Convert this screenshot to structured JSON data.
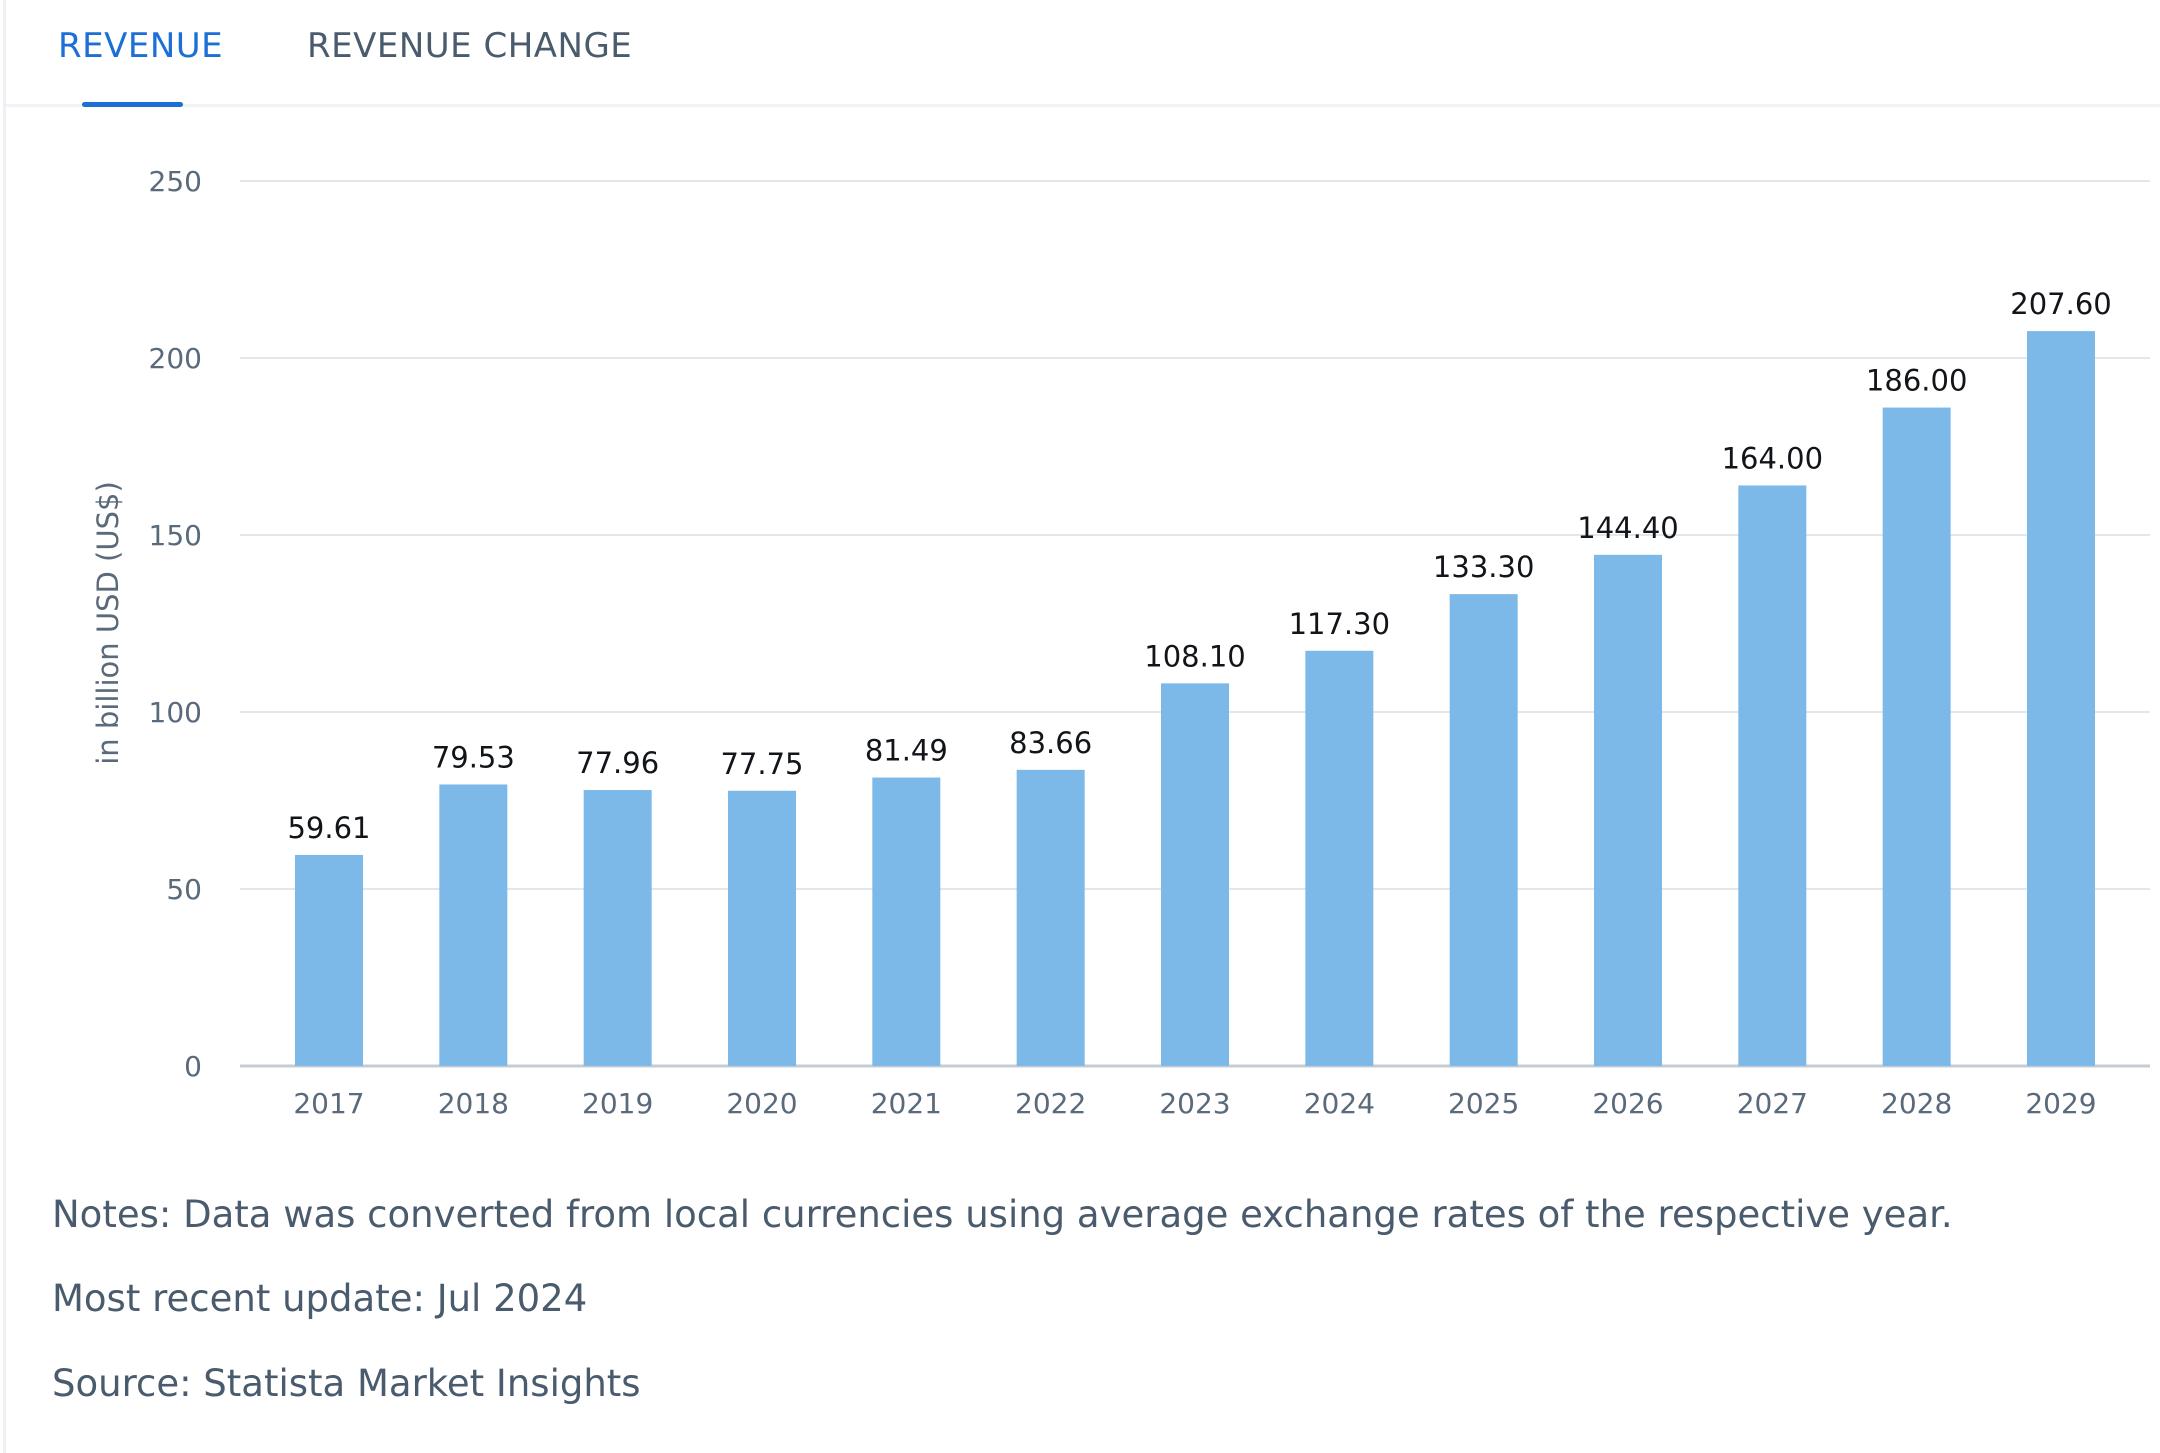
{
  "tabs": {
    "revenue_label": "REVENUE",
    "revenue_change_label": "REVENUE CHANGE"
  },
  "colors": {
    "accent": "#1c6fd4",
    "bar": "#7db9e8",
    "text_muted": "#4a5b6d"
  },
  "chart_data": {
    "type": "bar",
    "title": "",
    "xlabel": "",
    "ylabel": "in billion USD (US$)",
    "ylim": [
      0,
      250
    ],
    "yticks": [
      0,
      50,
      100,
      150,
      200,
      250
    ],
    "grid": true,
    "categories": [
      "2017",
      "2018",
      "2019",
      "2020",
      "2021",
      "2022",
      "2023",
      "2024",
      "2025",
      "2026",
      "2027",
      "2028",
      "2029"
    ],
    "values": [
      59.61,
      79.53,
      77.96,
      77.75,
      81.49,
      83.66,
      108.1,
      117.3,
      133.3,
      144.4,
      164.0,
      186.0,
      207.6
    ],
    "value_labels": [
      "59.61",
      "79.53",
      "77.96",
      "77.75",
      "81.49",
      "83.66",
      "108.10",
      "117.30",
      "133.30",
      "144.40",
      "164.00",
      "186.00",
      "207.60"
    ]
  },
  "notes": {
    "note": "Notes: Data was converted from local currencies using average exchange rates of the respective year.",
    "update": "Most recent update: Jul 2024",
    "source": "Source: Statista Market Insights"
  }
}
